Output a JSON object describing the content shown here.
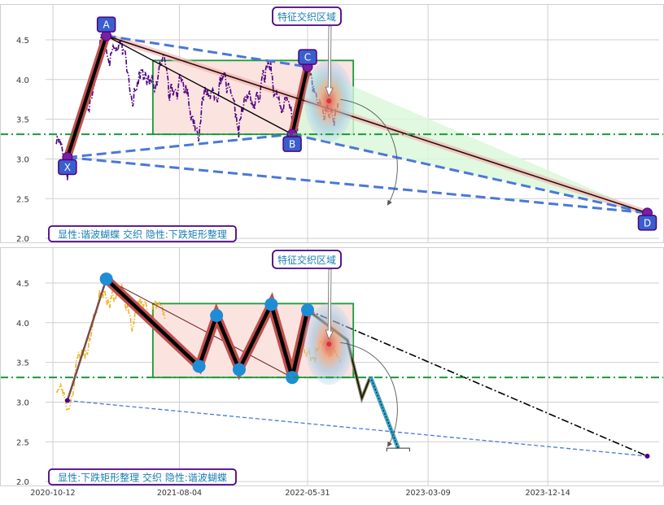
{
  "colors": {
    "grid": "#cfcfcf",
    "panel_bg": "#ffffff",
    "price_top": "#4b0082",
    "price_bottom": "#f0b429",
    "dashed_blue": "#4a78d6",
    "level_green": "#1a9a3a",
    "rect_fill": "#fbe3e0",
    "rect_stroke": "#1a9a3a",
    "thick_leg": "#000000",
    "leg_halo": "#c0504d",
    "label_bg": "#3a5fcd",
    "label_border": "#4b0082",
    "annot_text": "#1a7fb5",
    "light_green": "#d8f7d8",
    "pink_band": "#f2b8b3",
    "dot_blue": "#1f8dd6",
    "dashdot": "#000000",
    "fade_zig": "#3aa6c9"
  },
  "chart_data": [
    {
      "type": "line",
      "panel": "top",
      "ylim": [
        1.95,
        4.95
      ],
      "yticks": [
        "2.0",
        "2.5",
        "3.0",
        "3.5",
        "4.0",
        "4.5"
      ],
      "hline": 3.31,
      "annotation": "特征交织区域",
      "caption": "显性:谐波蝴蝶 交织 隐性:下跌矩形整理",
      "rectangle": {
        "x0": "2021-06-03",
        "x1": "2022-09-15",
        "y0": 3.31,
        "y1": 4.24
      },
      "pattern_points": [
        {
          "label": "X",
          "date": "2020-11-15",
          "value": 3.02
        },
        {
          "label": "A",
          "date": "2021-02-14",
          "value": 4.55
        },
        {
          "label": "B",
          "date": "2022-04-25",
          "value": 3.31
        },
        {
          "label": "C",
          "date": "2022-05-31",
          "value": 4.16
        },
        {
          "label": "D",
          "date": "2024-08-03",
          "value": 2.32
        }
      ],
      "target_zone": {
        "date": "2022-07-20",
        "value": 3.73
      }
    },
    {
      "type": "line",
      "panel": "bottom",
      "ylim": [
        1.95,
        4.95
      ],
      "yticks": [
        "2.0",
        "2.5",
        "3.0",
        "3.5",
        "4.0",
        "4.5"
      ],
      "hline": 3.31,
      "annotation": "特征交织区域",
      "caption": "显性:下跌矩形整理 交织 隐性:谐波蝴蝶",
      "rectangle": {
        "x0": "2021-06-03",
        "x1": "2022-09-15",
        "y0": 3.31,
        "y1": 4.24
      },
      "zigzag": [
        {
          "date": "2021-02-14",
          "value": 4.55
        },
        {
          "date": "2021-09-19",
          "value": 3.45
        },
        {
          "date": "2021-10-30",
          "value": 4.09
        },
        {
          "date": "2021-12-22",
          "value": 3.41
        },
        {
          "date": "2022-03-07",
          "value": 4.23
        },
        {
          "date": "2022-04-25",
          "value": 3.31
        },
        {
          "date": "2022-05-31",
          "value": 4.16
        }
      ],
      "projection": [
        {
          "date": "2022-05-31",
          "value": 4.16
        },
        {
          "date": "2022-09-01",
          "value": 3.78
        },
        {
          "date": "2022-10-05",
          "value": 3.05
        },
        {
          "date": "2022-10-25",
          "value": 3.32
        },
        {
          "date": "2022-12-29",
          "value": 2.42
        }
      ],
      "x_start": {
        "date": "2020-11-15",
        "value": 3.02
      },
      "d_point": {
        "date": "2024-08-03",
        "value": 2.32
      },
      "target_zone": {
        "date": "2022-07-20",
        "value": 3.73
      }
    }
  ],
  "x_axis": {
    "labels": [
      "2020-10-12",
      "2021-08-04",
      "2022-05-31",
      "2023-03-09",
      "2023-12-14"
    ]
  }
}
